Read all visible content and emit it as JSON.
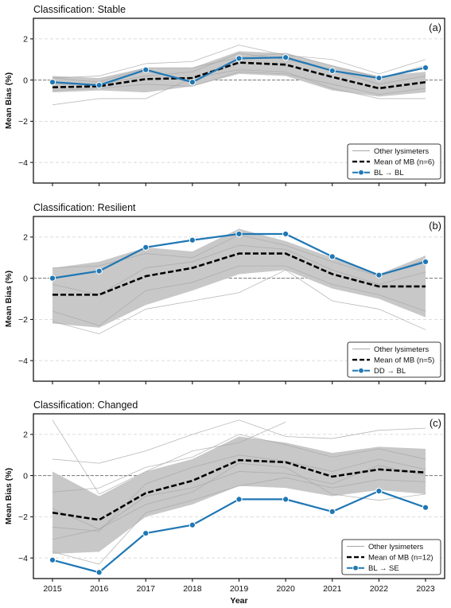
{
  "figure": {
    "xlabel": "Year"
  },
  "chart_data": [
    {
      "type": "line",
      "title": "Classification: Stable",
      "panel_label": "(a)",
      "xlabel": "",
      "ylabel": "Mean Bias (%)",
      "x": [
        2015,
        2016,
        2017,
        2018,
        2019,
        2020,
        2021,
        2022,
        2023
      ],
      "xticks": [
        2015,
        2016,
        2017,
        2018,
        2019,
        2020,
        2021,
        2022,
        2023
      ],
      "ylim": [
        -5,
        3
      ],
      "yticks": [
        -4,
        -2,
        0,
        2
      ],
      "grid": "horizontal dashed",
      "band": {
        "low": [
          -0.6,
          -0.5,
          -0.6,
          -0.3,
          0.3,
          0.2,
          -0.5,
          -0.8,
          -0.6
        ],
        "high": [
          0.2,
          0.1,
          0.6,
          0.6,
          1.4,
          1.3,
          0.7,
          0.2,
          0.4
        ]
      },
      "other_lines": [
        [
          -1.2,
          -0.9,
          -0.9,
          0.1,
          0.5,
          0.4,
          -0.4,
          -0.9,
          -0.9
        ],
        [
          0.1,
          0.2,
          0.8,
          0.9,
          1.7,
          1.2,
          1.0,
          0.3,
          1.0
        ],
        [
          -0.2,
          -0.2,
          0.2,
          0.4,
          1.3,
          1.0,
          0.5,
          -0.2,
          0.2
        ],
        [
          -0.5,
          -0.4,
          -0.2,
          -0.3,
          0.4,
          0.3,
          -0.2,
          -0.7,
          -0.4
        ],
        [
          0.1,
          -0.1,
          0.6,
          0.6,
          1.1,
          1.3,
          0.7,
          0.1,
          0.7
        ]
      ],
      "series": [
        {
          "name": "Mean of MB (n=6)",
          "values": [
            -0.35,
            -0.3,
            0.05,
            0.1,
            0.85,
            0.75,
            0.15,
            -0.4,
            -0.1
          ],
          "color": "#000000",
          "style": "dashed"
        },
        {
          "name": "BL → BL",
          "values": [
            -0.1,
            -0.25,
            0.5,
            -0.1,
            1.05,
            1.1,
            0.45,
            0.1,
            0.6
          ],
          "color": "#1f77b4",
          "style": "solid-marker"
        }
      ],
      "legend": {
        "position": "lower right",
        "other_label": "Other lysimeters"
      }
    },
    {
      "type": "line",
      "title": "Classification: Resilient",
      "panel_label": "(b)",
      "xlabel": "",
      "ylabel": "Mean Bias (%)",
      "x": [
        2015,
        2016,
        2017,
        2018,
        2019,
        2020,
        2021,
        2022,
        2023
      ],
      "xticks": [
        2015,
        2016,
        2017,
        2018,
        2019,
        2020,
        2021,
        2022,
        2023
      ],
      "ylim": [
        -5,
        3
      ],
      "yticks": [
        -4,
        -2,
        0,
        2
      ],
      "grid": "horizontal dashed",
      "band": {
        "low": [
          -2.2,
          -2.4,
          -1.3,
          -0.6,
          0.2,
          0.4,
          -0.5,
          -1.0,
          -1.9
        ],
        "high": [
          0.5,
          0.8,
          1.5,
          1.3,
          2.4,
          1.8,
          1.0,
          0.2,
          1.1
        ]
      },
      "other_lines": [
        [
          -2.1,
          -2.7,
          -1.5,
          -1.1,
          -0.7,
          0.4,
          -1.1,
          -1.5,
          -2.5
        ],
        [
          0.5,
          0.6,
          1.2,
          1.0,
          2.1,
          1.6,
          0.8,
          0.1,
          0.9
        ],
        [
          -0.3,
          -0.8,
          0.5,
          0.8,
          1.6,
          1.4,
          0.4,
          -0.3,
          0.3
        ],
        [
          -1.6,
          -2.3,
          -0.6,
          -0.2,
          0.6,
          0.6,
          -0.3,
          -0.8,
          -1.6
        ]
      ],
      "series": [
        {
          "name": "Mean of MB (n=5)",
          "values": [
            -0.8,
            -0.8,
            0.1,
            0.5,
            1.2,
            1.2,
            0.2,
            -0.4,
            -0.4
          ],
          "color": "#000000",
          "style": "dashed"
        },
        {
          "name": "DD → BL",
          "values": [
            0.0,
            0.35,
            1.5,
            1.85,
            2.15,
            2.15,
            1.05,
            0.15,
            0.8
          ],
          "color": "#1f77b4",
          "style": "solid-marker"
        }
      ],
      "legend": {
        "position": "lower right",
        "other_label": "Other lysimeters"
      }
    },
    {
      "type": "line",
      "title": "Classification: Changed",
      "panel_label": "(c)",
      "xlabel": "Year",
      "ylabel": "Mean Bias (%)",
      "x": [
        2015,
        2016,
        2017,
        2018,
        2019,
        2020,
        2021,
        2022,
        2023
      ],
      "xticks": [
        2015,
        2016,
        2017,
        2018,
        2019,
        2020,
        2021,
        2022,
        2023
      ],
      "ylim": [
        -5,
        3
      ],
      "yticks": [
        -4,
        -2,
        0,
        2
      ],
      "grid": "horizontal dashed",
      "band": {
        "low": [
          -3.8,
          -3.7,
          -2.0,
          -1.4,
          -0.5,
          -0.6,
          -1.0,
          -0.7,
          -0.9
        ],
        "high": [
          0.2,
          -1.0,
          0.2,
          0.8,
          1.9,
          1.6,
          1.1,
          1.4,
          1.3
        ]
      },
      "other_lines": [
        [
          2.7,
          -0.9,
          0.2,
          1.2,
          1.6,
          2.6,
          null,
          null,
          null
        ],
        [
          0.8,
          0.6,
          1.2,
          2.0,
          2.7,
          1.9,
          1.8,
          2.2,
          2.3
        ],
        [
          -0.8,
          -0.6,
          0.4,
          0.9,
          2.0,
          1.5,
          0.9,
          1.3,
          0.8
        ],
        [
          -2.5,
          -2.7,
          -0.4,
          0.4,
          1.0,
          0.7,
          0.2,
          0.8,
          0.3
        ],
        [
          -3.1,
          -2.6,
          -1.0,
          -0.6,
          0.2,
          0.1,
          -0.4,
          0.5,
          0.0
        ],
        [
          -1.6,
          -2.6,
          -1.4,
          -0.8,
          0.6,
          0.4,
          -0.9,
          -1.2,
          -0.9
        ],
        [
          -3.7,
          -4.3,
          -1.8,
          -1.2,
          -0.5,
          -0.1,
          -0.6,
          -0.2,
          -0.3
        ]
      ],
      "series": [
        {
          "name": "Mean of MB (n=12)",
          "values": [
            -1.8,
            -2.15,
            -0.85,
            -0.25,
            0.75,
            0.65,
            -0.05,
            0.3,
            0.15
          ],
          "color": "#000000",
          "style": "dashed"
        },
        {
          "name": "BL → SE",
          "values": [
            -4.1,
            -4.7,
            -2.8,
            -2.4,
            -1.15,
            -1.15,
            -1.75,
            -0.75,
            -1.55
          ],
          "color": "#1f77b4",
          "style": "solid-marker"
        }
      ],
      "legend": {
        "position": "lower right",
        "other_label": "Other lysimeters"
      }
    }
  ]
}
